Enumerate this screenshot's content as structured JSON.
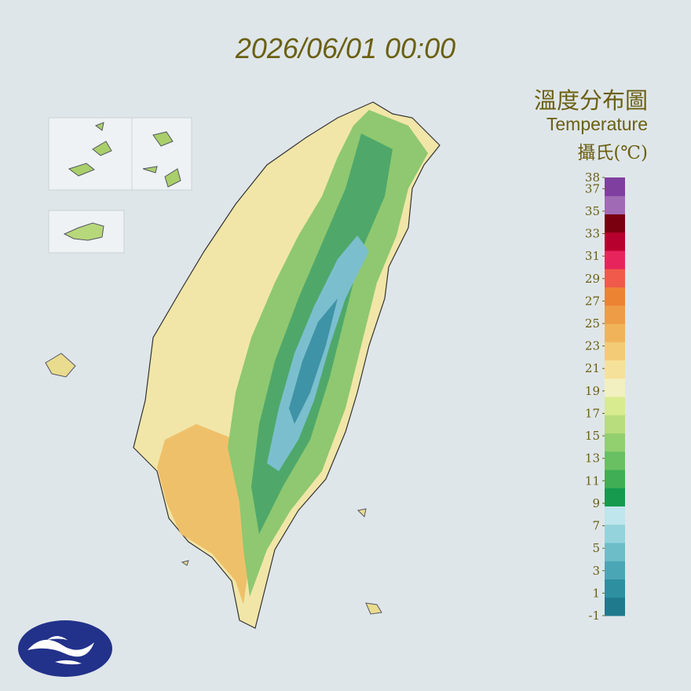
{
  "header": {
    "time": "2026/06/01 00:00"
  },
  "legend": {
    "title": "溫度分布圖",
    "subtitle": "Temperature",
    "unit": "攝氏(℃)",
    "lim": [
      -1,
      38
    ],
    "ticks": [
      38,
      37,
      35,
      33,
      31,
      29,
      27,
      25,
      23,
      21,
      19,
      17,
      15,
      13,
      11,
      9,
      7,
      5,
      3,
      1,
      -1
    ],
    "colors": [
      "#1e7a8c",
      "#2d8fa0",
      "#4aa6b5",
      "#6cbdc8",
      "#95d3dc",
      "#bfe6ec",
      "#159a4e",
      "#3fae55",
      "#69c063",
      "#92cf6f",
      "#b8dd7d",
      "#d8eb8f",
      "#f2f0c0",
      "#f6e19a",
      "#f3cb76",
      "#f0b35a",
      "#ee9c45",
      "#ec8333",
      "#f05a4a",
      "#e8245c",
      "#b8002e",
      "#7a0010",
      "#a06ab4",
      "#7f3f9e"
    ]
  }
}
